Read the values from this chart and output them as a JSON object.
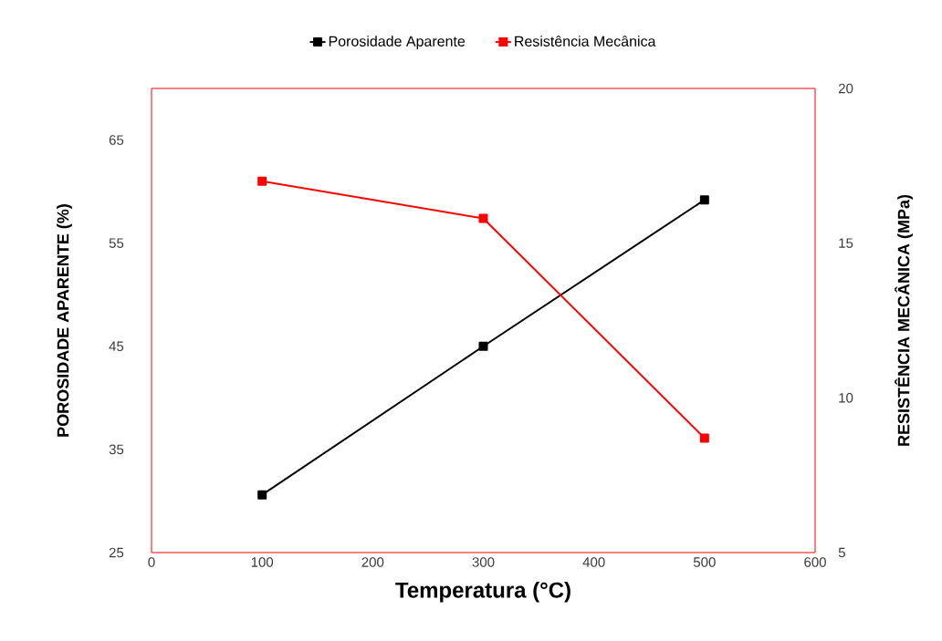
{
  "chart_data": {
    "type": "line",
    "xlabel": "Temperatura (°C)",
    "ylabel": "POROSIDADE APARENTE (%)",
    "y2label": "RESISTÊNCIA MECÂNICA (MPa)",
    "x": [
      100,
      300,
      500
    ],
    "series": [
      {
        "name": "Porosidade Aparente",
        "color": "#000000",
        "values": [
          30.6,
          45,
          59.2
        ]
      },
      {
        "name": "Resistência Mecânica",
        "color": "#ff0000",
        "values": [
          17.0,
          15.8,
          8.7
        ],
        "axis": "y2"
      }
    ],
    "xlim": [
      0,
      600
    ],
    "xticks": [
      0,
      100,
      200,
      300,
      400,
      500,
      600
    ],
    "ylim": [
      25,
      70
    ],
    "yticks": [
      25,
      35,
      45,
      55,
      65
    ],
    "y2lim": [
      5,
      20
    ],
    "y2ticks": [
      5,
      10,
      15,
      20
    ],
    "legend": "top",
    "marker": "square",
    "line_style": "solid"
  }
}
